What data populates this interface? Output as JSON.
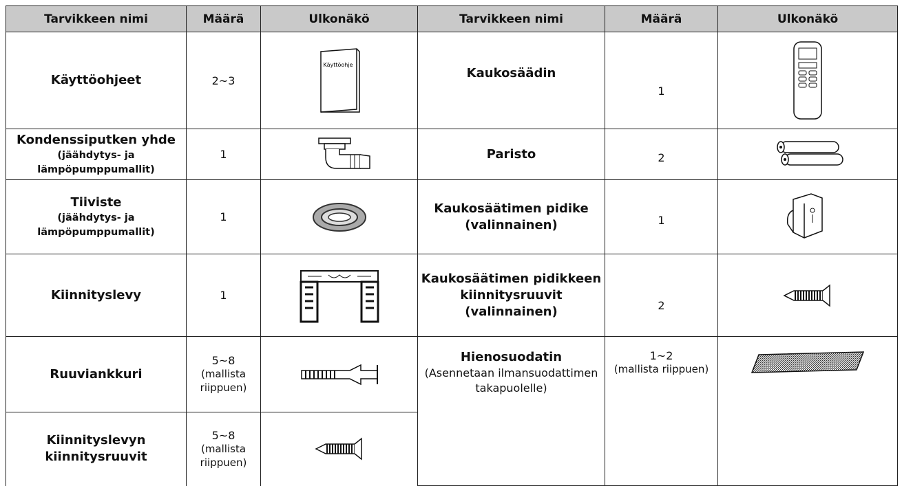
{
  "header": [
    "Tarvikkeen nimi",
    "Määrä",
    "Ulkonäkö",
    "Tarvikkeen nimi",
    "Määrä",
    "Ulkonäkö"
  ],
  "rows": [
    {
      "left": {
        "name": "Käyttöohjeet",
        "qty": "2~3",
        "image_label": "Käyttöohje"
      },
      "right": {
        "name": "Kaukosäädin",
        "qty": "1"
      }
    },
    {
      "left": {
        "name": "Kondenssiputken yhde",
        "note": "(jäähdytys- ja lämpöpumppumallit)",
        "qty": "1"
      },
      "right": {
        "name": "Paristo",
        "qty": "2"
      }
    },
    {
      "left": {
        "name": "Tiiviste",
        "note": "(jäähdytys- ja lämpöpumppumallit)",
        "qty": "1"
      },
      "right": {
        "name": "Kaukosäätimen pidike (valinnainen)",
        "qty": "1"
      }
    },
    {
      "left": {
        "name": "Kiinnityslevy",
        "qty": "1"
      },
      "right": {
        "name": "Kaukosäätimen pidikkeen kiinnitysruuvit (valinnainen)",
        "qty": "2"
      }
    },
    {
      "left": {
        "name": "Ruuviankkuri",
        "qty": "5~8",
        "qty_note": "(mallista riippuen)"
      },
      "right": {
        "name": "Hienosuodatin",
        "note": "(Asennetaan ilmansuodattimen takapuolelle)",
        "qty": "1~2",
        "qty_note": "(mallista riippuen)"
      }
    },
    {
      "left": {
        "name": "Kiinnityslevyn kiinnitysruuvit",
        "qty": "5~8",
        "qty_note": "(mallista riippuen)"
      }
    }
  ]
}
